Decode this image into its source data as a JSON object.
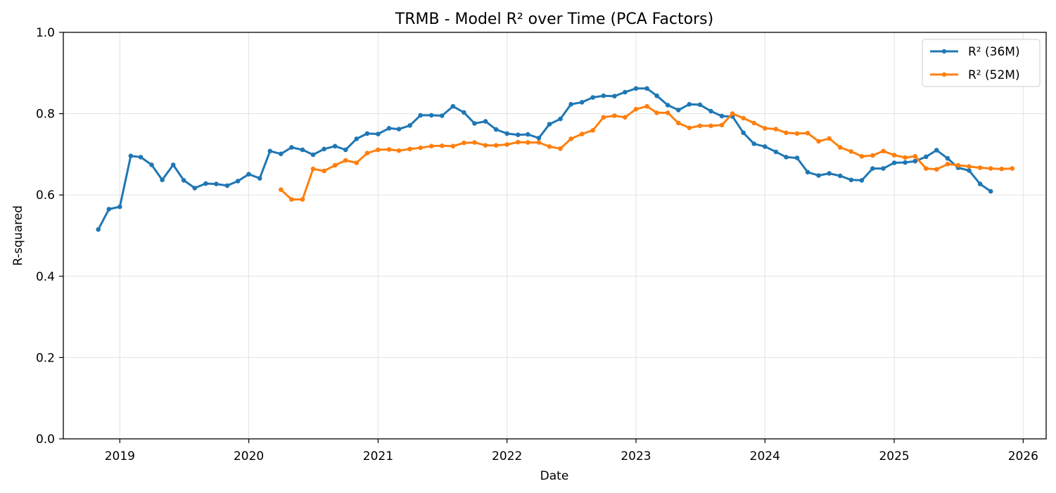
{
  "chart_data": {
    "type": "line",
    "title": "TRMB - Model R² over Time (PCA Factors)",
    "xlabel": "Date",
    "ylabel": "R-squared",
    "xlim": [
      "2018-07-25",
      "2026-03-07"
    ],
    "ylim": [
      0,
      1
    ],
    "x_ticks": [
      "2019",
      "2020",
      "2021",
      "2022",
      "2023",
      "2024",
      "2025",
      "2026"
    ],
    "y_ticks": [
      "0.0",
      "0.2",
      "0.4",
      "0.6",
      "0.8",
      "1.0"
    ],
    "grid": true,
    "legend_position": "top-right",
    "colors": {
      "series_1": "#1f77b4",
      "series_2": "#ff7f0e"
    },
    "series": [
      {
        "name": "R² (36M)",
        "start": "2018-11",
        "values": [
          0.515,
          0.565,
          0.571,
          0.696,
          0.693,
          0.674,
          0.637,
          0.674,
          0.636,
          0.617,
          0.628,
          0.627,
          0.623,
          0.634,
          0.651,
          0.641,
          0.708,
          0.701,
          0.717,
          0.711,
          0.699,
          0.713,
          0.72,
          0.711,
          0.738,
          0.751,
          0.75,
          0.764,
          0.762,
          0.771,
          0.796,
          0.796,
          0.795,
          0.818,
          0.803,
          0.776,
          0.781,
          0.761,
          0.751,
          0.748,
          0.749,
          0.74,
          0.774,
          0.787,
          0.823,
          0.828,
          0.84,
          0.844,
          0.843,
          0.853,
          0.862,
          0.862,
          0.844,
          0.821,
          0.809,
          0.823,
          0.822,
          0.806,
          0.794,
          0.793,
          0.753,
          0.726,
          0.719,
          0.706,
          0.693,
          0.691,
          0.656,
          0.648,
          0.653,
          0.647,
          0.637,
          0.636,
          0.665,
          0.665,
          0.679,
          0.68,
          0.683,
          0.694,
          0.71,
          0.69,
          0.667,
          0.66,
          0.627,
          0.609
        ]
      },
      {
        "name": "R² (52M)",
        "start": "2020-04",
        "values": [
          0.613,
          0.589,
          0.589,
          0.664,
          0.659,
          0.673,
          0.685,
          0.679,
          0.703,
          0.711,
          0.712,
          0.709,
          0.713,
          0.716,
          0.72,
          0.721,
          0.72,
          0.728,
          0.729,
          0.722,
          0.722,
          0.724,
          0.73,
          0.729,
          0.729,
          0.719,
          0.714,
          0.738,
          0.75,
          0.759,
          0.791,
          0.795,
          0.791,
          0.811,
          0.818,
          0.802,
          0.802,
          0.777,
          0.765,
          0.77,
          0.77,
          0.772,
          0.8,
          0.789,
          0.777,
          0.764,
          0.762,
          0.753,
          0.751,
          0.752,
          0.732,
          0.739,
          0.717,
          0.707,
          0.695,
          0.697,
          0.708,
          0.698,
          0.692,
          0.695,
          0.665,
          0.663,
          0.676,
          0.673,
          0.67,
          0.667,
          0.665,
          0.664,
          0.665
        ]
      }
    ]
  }
}
